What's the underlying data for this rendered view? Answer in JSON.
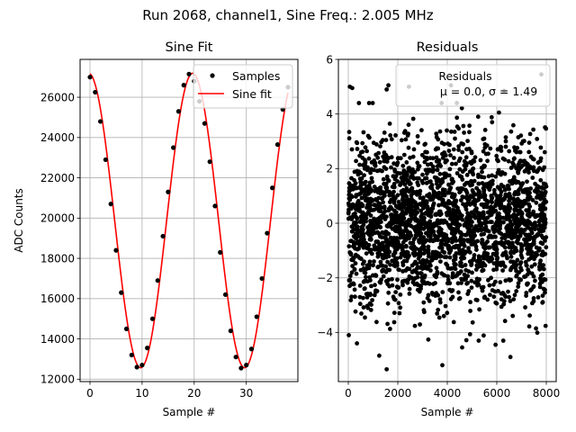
{
  "figure": {
    "suptitle": "Run 2068, channel1, Sine Freq.: 2.005 MHz"
  },
  "chart_data": [
    {
      "type": "line",
      "title": "Sine Fit",
      "xlabel": "Sample #",
      "ylabel": "ADC Counts",
      "xlim": [
        -1.9,
        39.9
      ],
      "ylim": [
        11880,
        27880
      ],
      "xticks": [
        0,
        10,
        20,
        30
      ],
      "yticks": [
        12000,
        14000,
        16000,
        18000,
        20000,
        22000,
        24000,
        26000
      ],
      "grid": true,
      "legend": {
        "position": "top-right",
        "entries": [
          "Samples",
          "Sine fit"
        ]
      },
      "fit": {
        "offset": 19880,
        "amplitude": 7310,
        "period": 19.95,
        "phase": 0.08,
        "color": "#ff0000"
      },
      "series": [
        {
          "name": "Samples",
          "style": "points",
          "color": "#000000",
          "x": [
            0,
            1,
            2,
            3,
            4,
            5,
            6,
            7,
            8,
            9,
            10,
            11,
            12,
            13,
            14,
            15,
            16,
            17,
            18,
            19,
            20,
            21,
            22,
            23,
            24,
            25,
            26,
            27,
            28,
            29,
            30,
            31,
            32,
            33,
            34,
            35,
            36,
            37,
            38
          ],
          "y": [
            27000,
            26250,
            24800,
            22900,
            20700,
            18400,
            16300,
            14500,
            13200,
            12600,
            12700,
            13550,
            15000,
            16900,
            19100,
            21300,
            23500,
            25300,
            26600,
            27150,
            26800,
            25800,
            24700,
            22800,
            20600,
            18300,
            16200,
            14400,
            13100,
            12550,
            12700,
            13500,
            15100,
            17000,
            19250,
            21500,
            23650,
            25400,
            26500
          ]
        },
        {
          "name": "Sine fit",
          "style": "line",
          "color": "#ff0000"
        }
      ]
    },
    {
      "type": "scatter",
      "title": "Residuals",
      "xlabel": "Sample #",
      "ylabel": "",
      "xlim": [
        -400,
        8400
      ],
      "ylim": [
        -5.8,
        6.0
      ],
      "xticks": [
        0,
        2000,
        4000,
        6000,
        8000
      ],
      "yticks": [
        -4,
        -2,
        0,
        2,
        4,
        6
      ],
      "grid": true,
      "legend": {
        "position": "top-right",
        "entries": [
          "Residuals",
          "μ = 0.0, σ = 1.49"
        ]
      },
      "series": [
        {
          "name": "Residuals",
          "color": "#000000",
          "summary": {
            "mean": 0.0,
            "sigma": 1.49,
            "count": 8000
          },
          "outliers": [
            {
              "x": 60,
              "y": 5.0
            },
            {
              "x": 160,
              "y": 4.95
            },
            {
              "x": 1550,
              "y": 4.9
            },
            {
              "x": 1620,
              "y": 5.05
            },
            {
              "x": 2450,
              "y": 5.0
            },
            {
              "x": 4150,
              "y": 5.05
            },
            {
              "x": 7800,
              "y": 5.45
            },
            {
              "x": 6300,
              "y": 4.85
            },
            {
              "x": 1550,
              "y": -5.35
            },
            {
              "x": 3800,
              "y": -5.2
            },
            {
              "x": 1250,
              "y": -4.85
            },
            {
              "x": 6550,
              "y": -4.9
            },
            {
              "x": 20,
              "y": -4.1
            },
            {
              "x": 350,
              "y": -4.4
            },
            {
              "x": 4600,
              "y": -4.55
            },
            {
              "x": 5950,
              "y": -4.45
            }
          ]
        }
      ]
    }
  ]
}
